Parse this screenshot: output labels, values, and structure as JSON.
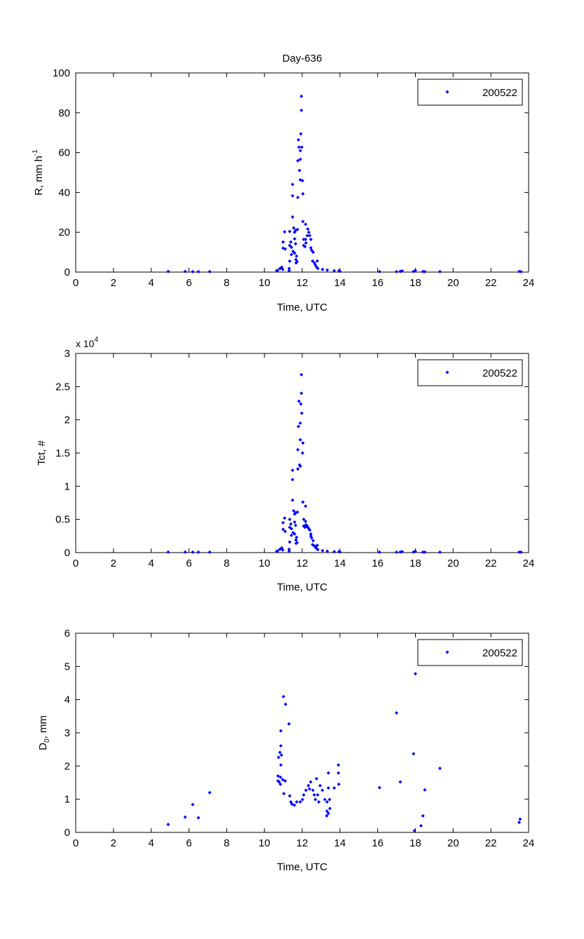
{
  "figure_title": "Day-636",
  "chart_data": [
    {
      "type": "scatter",
      "title": "Day-636",
      "xlabel": "Time, UTC",
      "ylabel": "R, mm h",
      "ylabel_sup": "-1",
      "xlim": [
        0,
        24
      ],
      "ylim": [
        0,
        100
      ],
      "xticks": [
        "0",
        "2",
        "4",
        "6",
        "8",
        "10",
        "12",
        "14",
        "16",
        "18",
        "20",
        "22",
        "24"
      ],
      "yticks": [
        "0",
        "20",
        "40",
        "60",
        "80",
        "100"
      ],
      "legend": {
        "label": "200522",
        "position": "top-right"
      },
      "marker_color": "#0000ff",
      "points": [
        [
          4.9,
          0.3
        ],
        [
          5.8,
          0.3
        ],
        [
          6.2,
          0.2
        ],
        [
          6.5,
          0.2
        ],
        [
          7.1,
          0.2
        ],
        [
          10.65,
          0.7
        ],
        [
          10.7,
          0.9
        ],
        [
          10.82,
          1.8
        ],
        [
          10.92,
          2.4
        ],
        [
          10.97,
          1.3
        ],
        [
          11.31,
          1.8
        ],
        [
          11.31,
          0.7
        ],
        [
          10.99,
          15.1
        ],
        [
          10.99,
          12
        ],
        [
          11.07,
          20.2
        ],
        [
          11.1,
          11.6
        ],
        [
          11.34,
          20.4
        ],
        [
          11.34,
          13.4
        ],
        [
          11.34,
          5.5
        ],
        [
          11.4,
          15.1
        ],
        [
          11.43,
          12.4
        ],
        [
          11.43,
          8.8
        ],
        [
          11.49,
          44
        ],
        [
          11.49,
          38.3
        ],
        [
          11.49,
          27.7
        ],
        [
          11.52,
          10.4
        ],
        [
          11.55,
          22.2
        ],
        [
          11.6,
          20
        ],
        [
          11.6,
          16.7
        ],
        [
          11.6,
          9.5
        ],
        [
          11.65,
          21
        ],
        [
          11.65,
          14.2
        ],
        [
          11.67,
          6.3
        ],
        [
          11.68,
          4.6
        ],
        [
          11.7,
          8
        ],
        [
          11.73,
          5.2
        ],
        [
          11.75,
          21.4
        ],
        [
          11.77,
          55.9
        ],
        [
          11.77,
          37.5
        ],
        [
          11.8,
          66.4
        ],
        [
          11.83,
          62.7
        ],
        [
          11.86,
          51
        ],
        [
          11.9,
          61
        ],
        [
          11.9,
          56.6
        ],
        [
          11.9,
          46.3
        ],
        [
          11.93,
          69.4
        ],
        [
          11.96,
          88.3
        ],
        [
          11.96,
          81.2
        ],
        [
          11.98,
          62.7
        ],
        [
          12.02,
          45.9
        ],
        [
          12.04,
          39.3
        ],
        [
          12.04,
          25.4
        ],
        [
          12.08,
          16.4
        ],
        [
          12.08,
          13.4
        ],
        [
          12.15,
          12.8
        ],
        [
          12.18,
          24
        ],
        [
          12.18,
          16.4
        ],
        [
          12.2,
          14.6
        ],
        [
          12.27,
          18.3
        ],
        [
          12.3,
          21.6
        ],
        [
          12.35,
          20
        ],
        [
          12.4,
          18.3
        ],
        [
          12.46,
          16.4
        ],
        [
          12.46,
          12.2
        ],
        [
          12.5,
          11
        ],
        [
          12.55,
          5.6
        ],
        [
          12.58,
          10
        ],
        [
          12.65,
          4.6
        ],
        [
          12.7,
          3.5
        ],
        [
          12.77,
          2.4
        ],
        [
          12.8,
          5.6
        ],
        [
          12.83,
          1.8
        ],
        [
          13.08,
          1.3
        ],
        [
          13.33,
          1
        ],
        [
          13.7,
          0.7
        ],
        [
          13.95,
          0.7
        ],
        [
          14.0,
          0.4
        ],
        [
          16.1,
          0.2
        ],
        [
          17.0,
          0.2
        ],
        [
          17.2,
          0.3
        ],
        [
          17.3,
          0.6
        ],
        [
          17.9,
          0.3
        ],
        [
          18.0,
          0.8
        ],
        [
          18.4,
          0.3
        ],
        [
          18.5,
          0.2
        ],
        [
          19.3,
          0.2
        ],
        [
          23.5,
          0.3
        ],
        [
          23.6,
          0.2
        ]
      ]
    },
    {
      "type": "scatter",
      "xlabel": "Time, UTC",
      "ylabel": "Tct, #",
      "scale_label": "x 10",
      "scale_exp": "4",
      "xlim": [
        0,
        24
      ],
      "ylim": [
        0,
        30000
      ],
      "xticks": [
        "0",
        "2",
        "4",
        "6",
        "8",
        "10",
        "12",
        "14",
        "16",
        "18",
        "20",
        "22",
        "24"
      ],
      "yticks": [
        "0",
        "0.5",
        "1",
        "1.5",
        "2",
        "2.5",
        "3"
      ],
      "legend": {
        "label": "200522",
        "position": "top-right"
      },
      "marker_color": "#0000ff",
      "points": [
        [
          4.9,
          80
        ],
        [
          5.8,
          80
        ],
        [
          6.2,
          60
        ],
        [
          6.5,
          60
        ],
        [
          7.1,
          60
        ],
        [
          10.65,
          200
        ],
        [
          10.7,
          250
        ],
        [
          10.82,
          500
        ],
        [
          10.92,
          700
        ],
        [
          10.97,
          400
        ],
        [
          11.31,
          500
        ],
        [
          11.31,
          200
        ],
        [
          10.99,
          4500
        ],
        [
          10.99,
          3500
        ],
        [
          11.07,
          5200
        ],
        [
          11.1,
          3200
        ],
        [
          11.34,
          5000
        ],
        [
          11.34,
          3800
        ],
        [
          11.34,
          1600
        ],
        [
          11.4,
          4300
        ],
        [
          11.43,
          3600
        ],
        [
          11.43,
          2600
        ],
        [
          11.49,
          12400
        ],
        [
          11.49,
          11000
        ],
        [
          11.49,
          7900
        ],
        [
          11.52,
          3000
        ],
        [
          11.55,
          6300
        ],
        [
          11.6,
          5800
        ],
        [
          11.6,
          4600
        ],
        [
          11.6,
          2800
        ],
        [
          11.65,
          6000
        ],
        [
          11.65,
          4100
        ],
        [
          11.67,
          1900
        ],
        [
          11.68,
          1400
        ],
        [
          11.7,
          2300
        ],
        [
          11.73,
          1500
        ],
        [
          11.75,
          6100
        ],
        [
          11.77,
          15500
        ],
        [
          11.77,
          12600
        ],
        [
          11.8,
          19000
        ],
        [
          11.83,
          22800
        ],
        [
          11.86,
          13200
        ],
        [
          11.9,
          19500
        ],
        [
          11.9,
          17000
        ],
        [
          11.9,
          13000
        ],
        [
          11.93,
          22400
        ],
        [
          11.96,
          26800
        ],
        [
          11.96,
          24000
        ],
        [
          11.98,
          21000
        ],
        [
          12.02,
          15000
        ],
        [
          12.04,
          16500
        ],
        [
          12.04,
          7600
        ],
        [
          12.08,
          5000
        ],
        [
          12.08,
          4000
        ],
        [
          12.15,
          3800
        ],
        [
          12.18,
          7000
        ],
        [
          12.18,
          4700
        ],
        [
          12.2,
          4200
        ],
        [
          12.27,
          4000
        ],
        [
          12.3,
          3800
        ],
        [
          12.35,
          3600
        ],
        [
          12.4,
          3400
        ],
        [
          12.46,
          2800
        ],
        [
          12.46,
          2500
        ],
        [
          12.5,
          2200
        ],
        [
          12.55,
          1200
        ],
        [
          12.58,
          1800
        ],
        [
          12.65,
          1000
        ],
        [
          12.7,
          800
        ],
        [
          12.77,
          600
        ],
        [
          12.8,
          1100
        ],
        [
          12.83,
          450
        ],
        [
          13.08,
          300
        ],
        [
          13.33,
          200
        ],
        [
          13.7,
          150
        ],
        [
          13.95,
          150
        ],
        [
          14.0,
          100
        ],
        [
          16.1,
          60
        ],
        [
          17.0,
          60
        ],
        [
          17.2,
          80
        ],
        [
          17.3,
          150
        ],
        [
          17.9,
          80
        ],
        [
          18.0,
          200
        ],
        [
          18.4,
          80
        ],
        [
          18.5,
          60
        ],
        [
          19.3,
          60
        ],
        [
          23.5,
          80
        ],
        [
          23.6,
          60
        ]
      ]
    },
    {
      "type": "scatter",
      "xlabel": "Time, UTC",
      "ylabel": "D",
      "ylabel_sub": "0",
      "ylabel_suffix": ", mm",
      "xlim": [
        0,
        24
      ],
      "ylim": [
        0,
        6
      ],
      "xticks": [
        "0",
        "2",
        "4",
        "6",
        "8",
        "10",
        "12",
        "14",
        "16",
        "18",
        "20",
        "22",
        "24"
      ],
      "yticks": [
        "0",
        "1",
        "2",
        "3",
        "4",
        "5",
        "6"
      ],
      "legend": {
        "label": "200522",
        "position": "top-right"
      },
      "marker_color": "#0000ff",
      "points": [
        [
          4.9,
          0.24
        ],
        [
          5.8,
          0.46
        ],
        [
          6.2,
          0.84
        ],
        [
          6.5,
          0.44
        ],
        [
          7.1,
          1.2
        ],
        [
          11.01,
          4.09
        ],
        [
          11.12,
          3.86
        ],
        [
          11.3,
          3.27
        ],
        [
          10.87,
          3.06
        ],
        [
          10.87,
          2.61
        ],
        [
          10.82,
          2.41
        ],
        [
          10.9,
          2.33
        ],
        [
          10.75,
          2.26
        ],
        [
          10.87,
          2.03
        ],
        [
          10.72,
          1.7
        ],
        [
          10.85,
          1.66
        ],
        [
          10.97,
          1.59
        ],
        [
          11.1,
          1.55
        ],
        [
          10.72,
          1.55
        ],
        [
          10.85,
          1.45
        ],
        [
          10.78,
          1.52
        ],
        [
          11.03,
          1.17
        ],
        [
          11.34,
          1.1
        ],
        [
          11.4,
          0.92
        ],
        [
          11.46,
          0.85
        ],
        [
          11.71,
          0.92
        ],
        [
          11.59,
          0.82
        ],
        [
          11.9,
          0.92
        ],
        [
          12.02,
          0.99
        ],
        [
          12.08,
          1.13
        ],
        [
          12.2,
          1.27
        ],
        [
          12.33,
          1.41
        ],
        [
          12.45,
          1.52
        ],
        [
          12.39,
          1.31
        ],
        [
          12.57,
          1.27
        ],
        [
          12.76,
          1.62
        ],
        [
          12.64,
          1.13
        ],
        [
          12.7,
          0.99
        ],
        [
          12.82,
          1.13
        ],
        [
          12.95,
          1.41
        ],
        [
          13.07,
          1.27
        ],
        [
          12.88,
          0.92
        ],
        [
          13.2,
          0.99
        ],
        [
          13.32,
          0.92
        ],
        [
          13.45,
          0.99
        ],
        [
          13.39,
          1.34
        ],
        [
          13.7,
          1.34
        ],
        [
          13.32,
          0.64
        ],
        [
          13.39,
          0.57
        ],
        [
          13.3,
          0.5
        ],
        [
          13.47,
          0.72
        ],
        [
          13.39,
          1.79
        ],
        [
          13.92,
          2.03
        ],
        [
          13.92,
          1.79
        ],
        [
          13.94,
          1.45
        ],
        [
          16.1,
          1.35
        ],
        [
          17.0,
          3.6
        ],
        [
          17.2,
          1.52
        ],
        [
          17.9,
          2.37
        ],
        [
          18.0,
          4.78
        ],
        [
          17.95,
          0.05
        ],
        [
          18.3,
          0.2
        ],
        [
          18.4,
          0.5
        ],
        [
          18.5,
          1.28
        ],
        [
          19.3,
          1.93
        ],
        [
          23.5,
          0.3
        ],
        [
          23.55,
          0.4
        ]
      ]
    }
  ]
}
